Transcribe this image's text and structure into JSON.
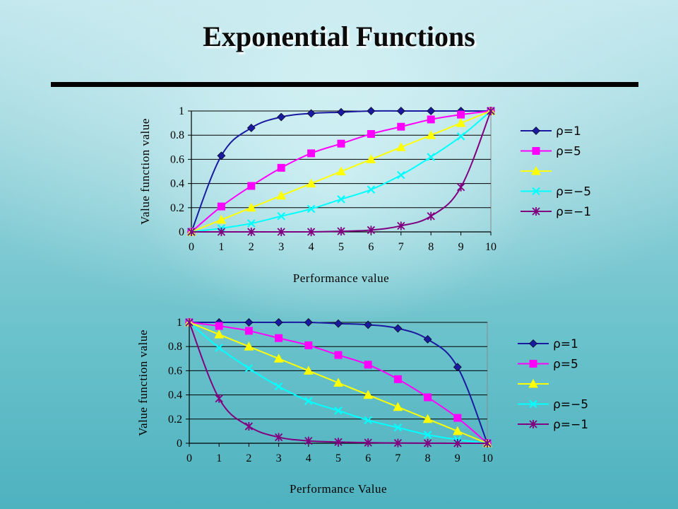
{
  "slide": {
    "title": "Exponential Functions"
  },
  "chart_data": [
    {
      "type": "line",
      "title": "",
      "xlabel": "Performance value",
      "ylabel": "Value function value",
      "xlim": [
        0,
        10
      ],
      "ylim": [
        0,
        1
      ],
      "x": [
        0,
        1,
        2,
        3,
        4,
        5,
        6,
        7,
        8,
        9,
        10
      ],
      "x_ticks": [
        "0",
        "1",
        "2",
        "3",
        "4",
        "5",
        "6",
        "7",
        "8",
        "9",
        "10"
      ],
      "y_ticks": [
        "0",
        "0.2",
        "0.4",
        "0.6",
        "0.8",
        "1"
      ],
      "grid": "horizontal",
      "legend_position": "right",
      "series": [
        {
          "name": "ρ=1",
          "color": "#1a1aa0",
          "marker": "diamond",
          "values": [
            0,
            0.63,
            0.86,
            0.95,
            0.98,
            0.99,
            1,
            1,
            1,
            1,
            1
          ]
        },
        {
          "name": "ρ=5",
          "color": "#ff00ff",
          "marker": "square",
          "values": [
            0,
            0.21,
            0.38,
            0.53,
            0.65,
            0.73,
            0.81,
            0.87,
            0.93,
            0.97,
            1
          ]
        },
        {
          "name": "",
          "color": "#ffff00",
          "marker": "triangle",
          "values": [
            0,
            0.1,
            0.2,
            0.3,
            0.4,
            0.5,
            0.6,
            0.7,
            0.8,
            0.9,
            1
          ]
        },
        {
          "name": "ρ=−5",
          "color": "#00ffff",
          "marker": "x",
          "values": [
            0,
            0.03,
            0.07,
            0.13,
            0.19,
            0.27,
            0.35,
            0.47,
            0.62,
            0.79,
            1
          ]
        },
        {
          "name": "ρ=−1",
          "color": "#800080",
          "marker": "asterisk",
          "values": [
            0,
            0,
            0,
            0,
            0,
            0.005,
            0.015,
            0.05,
            0.13,
            0.37,
            1
          ]
        }
      ]
    },
    {
      "type": "line",
      "title": "",
      "xlabel": "Performance Value",
      "ylabel": "Value function value",
      "xlim": [
        0,
        10
      ],
      "ylim": [
        0,
        1
      ],
      "x": [
        0,
        1,
        2,
        3,
        4,
        5,
        6,
        7,
        8,
        9,
        10
      ],
      "x_ticks": [
        "0",
        "1",
        "2",
        "3",
        "4",
        "5",
        "6",
        "7",
        "8",
        "9",
        "10"
      ],
      "y_ticks": [
        "0",
        "0.2",
        "0.4",
        "0.6",
        "0.8",
        "1"
      ],
      "grid": "horizontal",
      "legend_position": "right",
      "series": [
        {
          "name": "ρ=1",
          "color": "#1a1aa0",
          "marker": "diamond",
          "values": [
            1,
            1,
            1,
            1,
            1,
            0.99,
            0.98,
            0.95,
            0.86,
            0.63,
            0
          ]
        },
        {
          "name": "ρ=5",
          "color": "#ff00ff",
          "marker": "square",
          "values": [
            1,
            0.97,
            0.93,
            0.87,
            0.81,
            0.73,
            0.65,
            0.53,
            0.38,
            0.21,
            0
          ]
        },
        {
          "name": "",
          "color": "#ffff00",
          "marker": "triangle",
          "values": [
            1,
            0.9,
            0.8,
            0.7,
            0.6,
            0.5,
            0.4,
            0.3,
            0.2,
            0.1,
            0
          ]
        },
        {
          "name": "ρ=−5",
          "color": "#00ffff",
          "marker": "x",
          "values": [
            1,
            0.79,
            0.62,
            0.47,
            0.35,
            0.27,
            0.19,
            0.13,
            0.07,
            0.03,
            0
          ]
        },
        {
          "name": "ρ=−1",
          "color": "#800080",
          "marker": "asterisk",
          "values": [
            1,
            0.37,
            0.14,
            0.05,
            0.02,
            0.01,
            0.005,
            0.002,
            0.001,
            0,
            0
          ]
        }
      ]
    }
  ]
}
